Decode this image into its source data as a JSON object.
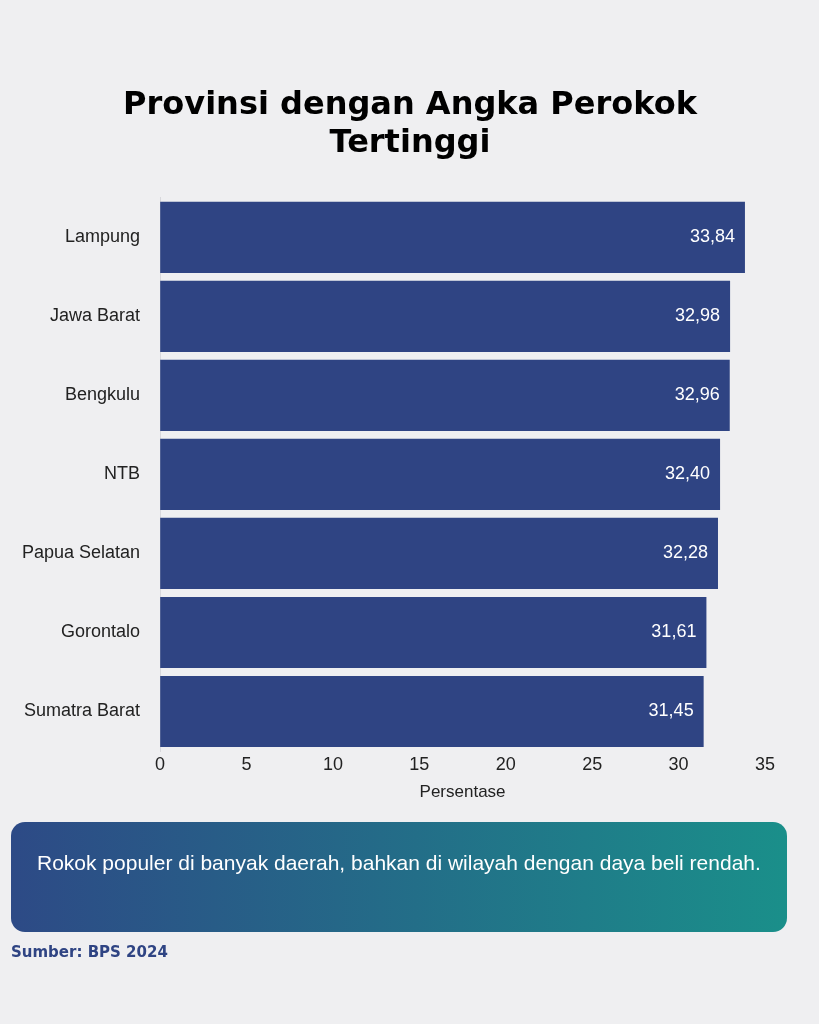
{
  "chart_data": {
    "type": "bar",
    "orientation": "horizontal",
    "title": "Provinsi dengan Angka Perokok Tertinggi",
    "xlabel": "Persentase",
    "categories": [
      "Lampung",
      "Jawa Barat",
      "Bengkulu",
      "NTB",
      "Papua Selatan",
      "Gorontalo",
      "Sumatra Barat"
    ],
    "values": [
      33.84,
      32.98,
      32.96,
      32.4,
      32.28,
      31.61,
      31.45
    ],
    "value_labels": [
      "33,84",
      "32,98",
      "32,96",
      "32,40",
      "32,28",
      "31,61",
      "31,45"
    ],
    "color": "#2f4483",
    "xlim": [
      0,
      35
    ],
    "xticks": [
      0,
      5,
      10,
      15,
      20,
      25,
      30,
      35
    ],
    "grid": false,
    "legend": false,
    "annotations": [
      "Rokok populer di banyak daerah, bahkan di wilayah dengan daya beli rendah.",
      "Sumber: BPS 2024"
    ]
  }
}
